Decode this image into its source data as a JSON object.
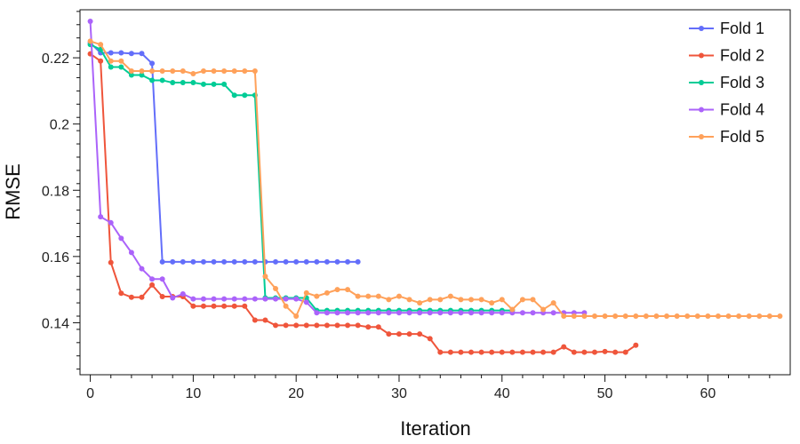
{
  "chart_data": {
    "type": "line",
    "title": "",
    "xlabel": "Iteration",
    "ylabel": "RMSE",
    "xlim": [
      -1,
      68
    ],
    "ylim": [
      0.1243,
      0.2345
    ],
    "x_ticks": [
      0,
      10,
      20,
      30,
      40,
      50,
      60
    ],
    "y_ticks": [
      0.14,
      0.16,
      0.18,
      0.2,
      0.22
    ],
    "x_tick_labels": [
      "0",
      "10",
      "20",
      "30",
      "40",
      "50",
      "60"
    ],
    "y_tick_labels": [
      "0.14",
      "0.16",
      "0.18",
      "0.2",
      "0.22"
    ],
    "legend_position": "top-right",
    "grid": false,
    "series": [
      {
        "name": "Fold 1",
        "color": "#636efa",
        "values": [
          0.2245,
          0.2215,
          0.2215,
          0.2215,
          0.2213,
          0.2213,
          0.2183,
          0.1584,
          0.1584,
          0.1584,
          0.1584,
          0.1584,
          0.1584,
          0.1584,
          0.1584,
          0.1584,
          0.1584,
          0.1584,
          0.1584,
          0.1584,
          0.1584,
          0.1584,
          0.1584,
          0.1584,
          0.1584,
          0.1584,
          0.1584
        ]
      },
      {
        "name": "Fold 2",
        "color": "#ef553b",
        "values": [
          0.2212,
          0.219,
          0.1582,
          0.1489,
          0.1477,
          0.1477,
          0.1514,
          0.1479,
          0.1479,
          0.1479,
          0.145,
          0.145,
          0.145,
          0.145,
          0.145,
          0.145,
          0.1408,
          0.1408,
          0.1392,
          0.1392,
          0.1392,
          0.1392,
          0.1392,
          0.1392,
          0.1392,
          0.1392,
          0.1392,
          0.1387,
          0.1387,
          0.1366,
          0.1366,
          0.1366,
          0.1366,
          0.1352,
          0.1311,
          0.1311,
          0.1311,
          0.1311,
          0.1311,
          0.1311,
          0.1311,
          0.1311,
          0.1311,
          0.1311,
          0.1311,
          0.1311,
          0.1327,
          0.1311,
          0.1311,
          0.1311,
          0.1313,
          0.1311,
          0.1311,
          0.1332
        ]
      },
      {
        "name": "Fold 3",
        "color": "#00cc96",
        "values": [
          0.224,
          0.2225,
          0.2172,
          0.2172,
          0.2148,
          0.2148,
          0.2132,
          0.2132,
          0.2125,
          0.2125,
          0.2125,
          0.212,
          0.212,
          0.212,
          0.2087,
          0.2087,
          0.2087,
          0.1475,
          0.1475,
          0.1475,
          0.1475,
          0.1475,
          0.1437,
          0.1437,
          0.1437,
          0.1437,
          0.1437,
          0.1437,
          0.1437,
          0.1437,
          0.1437,
          0.1437,
          0.1437,
          0.1437,
          0.1437,
          0.1437,
          0.1437,
          0.1437,
          0.1437,
          0.1437,
          0.1437,
          0.1437
        ]
      },
      {
        "name": "Fold 4",
        "color": "#ab63fa",
        "values": [
          0.231,
          0.172,
          0.1702,
          0.1655,
          0.1612,
          0.1563,
          0.1532,
          0.1532,
          0.1475,
          0.1487,
          0.1472,
          0.1472,
          0.1472,
          0.1472,
          0.1472,
          0.1472,
          0.1472,
          0.1472,
          0.1472,
          0.1472,
          0.1472,
          0.1462,
          0.143,
          0.143,
          0.143,
          0.143,
          0.143,
          0.143,
          0.143,
          0.143,
          0.143,
          0.143,
          0.143,
          0.143,
          0.143,
          0.143,
          0.143,
          0.143,
          0.143,
          0.143,
          0.143,
          0.143,
          0.143,
          0.143,
          0.143,
          0.143,
          0.143,
          0.143,
          0.143
        ]
      },
      {
        "name": "Fold 5",
        "color": "#ffa15a",
        "values": [
          0.225,
          0.224,
          0.219,
          0.219,
          0.216,
          0.216,
          0.216,
          0.216,
          0.216,
          0.216,
          0.2152,
          0.216,
          0.216,
          0.216,
          0.216,
          0.216,
          0.216,
          0.154,
          0.1503,
          0.145,
          0.142,
          0.149,
          0.148,
          0.149,
          0.15,
          0.15,
          0.148,
          0.148,
          0.148,
          0.147,
          0.148,
          0.147,
          0.146,
          0.147,
          0.147,
          0.148,
          0.147,
          0.147,
          0.147,
          0.146,
          0.147,
          0.144,
          0.147,
          0.147,
          0.144,
          0.146,
          0.142,
          0.142,
          0.142,
          0.142,
          0.142,
          0.142,
          0.142,
          0.142,
          0.142,
          0.142,
          0.142,
          0.142,
          0.142,
          0.142,
          0.142,
          0.142,
          0.142,
          0.142,
          0.142,
          0.142,
          0.142,
          0.142
        ]
      }
    ]
  }
}
